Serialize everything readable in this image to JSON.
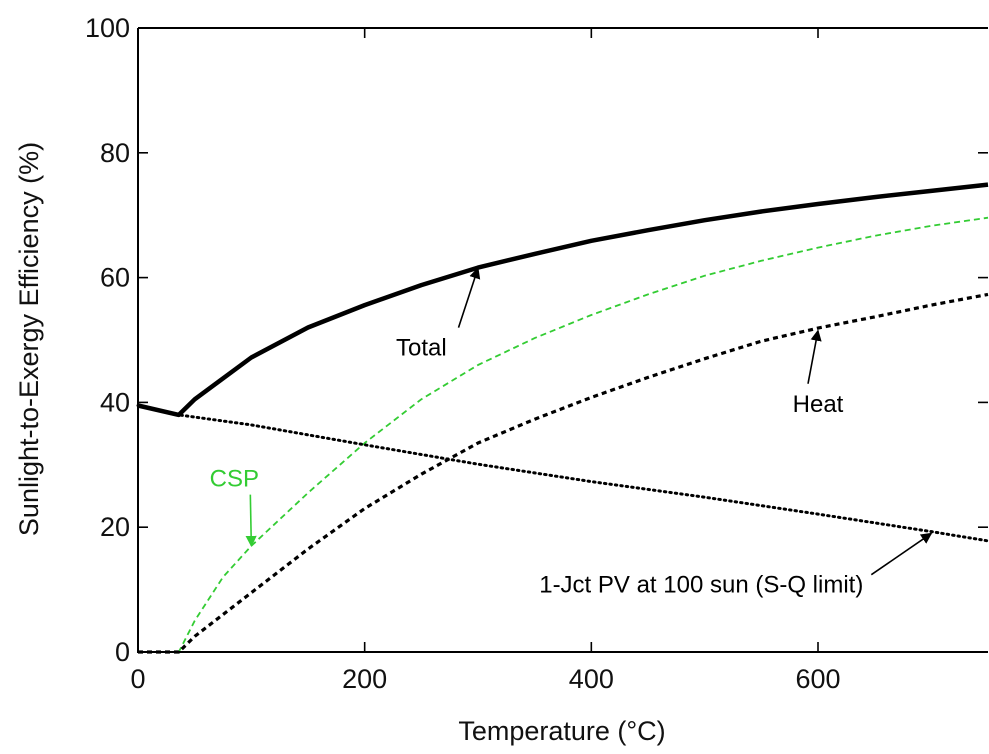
{
  "chart_data": {
    "type": "line",
    "title": "",
    "xlabel": "Temperature (°C)",
    "ylabel": "Sunlight-to-Exergy Efficiency (%)",
    "xlim": [
      0,
      750
    ],
    "ylim": [
      0,
      100
    ],
    "xticks": [
      0,
      200,
      400,
      600
    ],
    "yticks": [
      0,
      20,
      40,
      60,
      80,
      100
    ],
    "grid": false,
    "legend": "none",
    "colors": {
      "total": "#000000",
      "csp": "#33cc33",
      "heat": "#000000",
      "pv": "#000000",
      "axes": "#000000"
    },
    "series": [
      {
        "name": "Total",
        "style": "thick-solid",
        "x": [
          0,
          36,
          50,
          100,
          150,
          200,
          250,
          300,
          350,
          400,
          450,
          500,
          550,
          600,
          650,
          700,
          750
        ],
        "y": [
          39.5,
          38.0,
          40.5,
          47.2,
          52.0,
          55.6,
          58.8,
          61.6,
          63.8,
          65.9,
          67.6,
          69.2,
          70.6,
          71.8,
          72.9,
          73.9,
          74.9
        ]
      },
      {
        "name": "CSP",
        "style": "green-dashed",
        "x": [
          0,
          20,
          36,
          50,
          75,
          100,
          150,
          200,
          250,
          300,
          350,
          400,
          450,
          500,
          550,
          600,
          650,
          700,
          750
        ],
        "y": [
          0,
          0,
          0,
          5,
          12,
          17,
          25.5,
          33.5,
          40.5,
          46,
          50.3,
          54,
          57.3,
          60.3,
          62.7,
          64.8,
          66.7,
          68.3,
          69.6
        ]
      },
      {
        "name": "Heat",
        "style": "black-dashed",
        "x": [
          0,
          36,
          50,
          100,
          150,
          200,
          250,
          300,
          350,
          400,
          450,
          500,
          550,
          600,
          650,
          700,
          750
        ],
        "y": [
          0,
          0,
          2.5,
          9.5,
          16.5,
          23.0,
          28.5,
          33.5,
          37.3,
          40.8,
          44.0,
          47.0,
          49.8,
          51.9,
          53.7,
          55.6,
          57.3
        ]
      },
      {
        "name": "1-Jct PV at 100 sun (S-Q limit)",
        "style": "black-dotted",
        "x": [
          0,
          36,
          100,
          200,
          300,
          400,
          500,
          600,
          700,
          750
        ],
        "y": [
          39.5,
          38.0,
          36.4,
          33.2,
          30.1,
          27.3,
          24.8,
          22.1,
          19.3,
          17.8
        ]
      }
    ],
    "annotations": [
      {
        "text": "Total",
        "color": "#000000",
        "text_x": 250,
        "text_y": 47.5,
        "arrow_to_x": 300,
        "arrow_to_y": 61.5
      },
      {
        "text": "Heat",
        "color": "#000000",
        "text_x": 600,
        "text_y": 38.5,
        "arrow_to_x": 600,
        "arrow_to_y": 51.5
      },
      {
        "text": "CSP",
        "color": "#33cc33",
        "text_x": 85,
        "text_y": 26.5,
        "arrow_to_x": 100,
        "arrow_to_y": 17
      },
      {
        "text": "1-Jct PV at 100 sun (S-Q limit)",
        "color": "#000000",
        "text_x": 497,
        "text_y": 9.5,
        "arrow_to_x": 700,
        "arrow_to_y": 19
      }
    ]
  }
}
